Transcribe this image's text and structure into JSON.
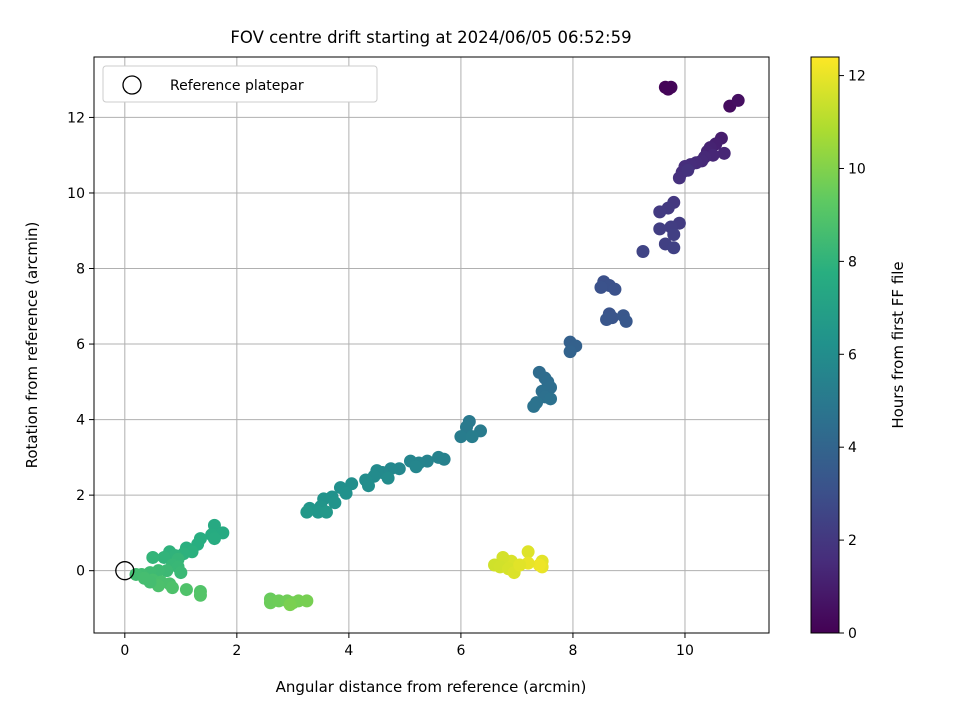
{
  "chart_data": {
    "type": "scatter",
    "title": "FOV centre drift starting at 2024/06/05 06:52:59",
    "xlabel": "Angular distance from reference (arcmin)",
    "ylabel": "Rotation from reference (arcmin)",
    "xlim": [
      -0.55,
      11.5
    ],
    "ylim": [
      -1.65,
      13.6
    ],
    "xticks": [
      "0",
      "2",
      "4",
      "6",
      "8",
      "10"
    ],
    "yticks": [
      "0",
      "2",
      "4",
      "6",
      "8",
      "10",
      "12"
    ],
    "grid": true,
    "legend": {
      "placement": "top-left",
      "entries": [
        "Reference platepar"
      ]
    },
    "reference_point": {
      "x": 0,
      "y": 0,
      "marker": "open-circle"
    },
    "colorbar": {
      "label": "Hours from first FF file",
      "colormap": "viridis",
      "range": [
        0,
        12.4
      ],
      "ticks": [
        "0",
        "2",
        "4",
        "6",
        "8",
        "10",
        "12"
      ]
    },
    "points": [
      {
        "x": 9.65,
        "y": 12.8,
        "c": 0.1
      },
      {
        "x": 9.75,
        "y": 12.8,
        "c": 0.2
      },
      {
        "x": 9.7,
        "y": 12.75,
        "c": 0.15
      },
      {
        "x": 10.8,
        "y": 12.3,
        "c": 0.4
      },
      {
        "x": 10.95,
        "y": 12.45,
        "c": 0.5
      },
      {
        "x": 10.65,
        "y": 11.45,
        "c": 1.0
      },
      {
        "x": 10.55,
        "y": 11.3,
        "c": 1.1
      },
      {
        "x": 10.45,
        "y": 11.2,
        "c": 1.2
      },
      {
        "x": 10.4,
        "y": 11.1,
        "c": 1.25
      },
      {
        "x": 10.7,
        "y": 11.05,
        "c": 1.3
      },
      {
        "x": 10.5,
        "y": 11.0,
        "c": 1.35
      },
      {
        "x": 10.35,
        "y": 10.95,
        "c": 1.4
      },
      {
        "x": 10.3,
        "y": 10.85,
        "c": 1.45
      },
      {
        "x": 10.2,
        "y": 10.8,
        "c": 1.5
      },
      {
        "x": 10.1,
        "y": 10.75,
        "c": 1.55
      },
      {
        "x": 10.0,
        "y": 10.7,
        "c": 1.6
      },
      {
        "x": 9.95,
        "y": 10.55,
        "c": 1.65
      },
      {
        "x": 9.9,
        "y": 10.4,
        "c": 1.7
      },
      {
        "x": 10.05,
        "y": 10.6,
        "c": 1.75
      },
      {
        "x": 9.8,
        "y": 9.75,
        "c": 2.0
      },
      {
        "x": 9.7,
        "y": 9.6,
        "c": 2.05
      },
      {
        "x": 9.55,
        "y": 9.5,
        "c": 2.1
      },
      {
        "x": 9.9,
        "y": 9.2,
        "c": 2.15
      },
      {
        "x": 9.75,
        "y": 9.1,
        "c": 2.2
      },
      {
        "x": 9.55,
        "y": 9.05,
        "c": 2.25
      },
      {
        "x": 9.8,
        "y": 8.9,
        "c": 2.3
      },
      {
        "x": 9.65,
        "y": 8.65,
        "c": 2.35
      },
      {
        "x": 9.8,
        "y": 8.55,
        "c": 2.4
      },
      {
        "x": 9.25,
        "y": 8.45,
        "c": 2.5
      },
      {
        "x": 8.55,
        "y": 7.65,
        "c": 3.0
      },
      {
        "x": 8.65,
        "y": 7.55,
        "c": 3.05
      },
      {
        "x": 8.75,
        "y": 7.45,
        "c": 3.1
      },
      {
        "x": 8.5,
        "y": 7.5,
        "c": 3.1
      },
      {
        "x": 8.65,
        "y": 6.8,
        "c": 3.2
      },
      {
        "x": 8.7,
        "y": 6.7,
        "c": 3.25
      },
      {
        "x": 8.6,
        "y": 6.65,
        "c": 3.3
      },
      {
        "x": 8.9,
        "y": 6.75,
        "c": 3.35
      },
      {
        "x": 8.95,
        "y": 6.6,
        "c": 3.4
      },
      {
        "x": 7.95,
        "y": 6.05,
        "c": 3.8
      },
      {
        "x": 8.05,
        "y": 5.95,
        "c": 3.85
      },
      {
        "x": 7.95,
        "y": 5.8,
        "c": 3.9
      },
      {
        "x": 7.4,
        "y": 5.25,
        "c": 4.3
      },
      {
        "x": 7.5,
        "y": 5.1,
        "c": 4.35
      },
      {
        "x": 7.55,
        "y": 5.0,
        "c": 4.4
      },
      {
        "x": 7.6,
        "y": 4.85,
        "c": 4.45
      },
      {
        "x": 7.45,
        "y": 4.75,
        "c": 4.5
      },
      {
        "x": 7.5,
        "y": 4.6,
        "c": 4.55
      },
      {
        "x": 7.6,
        "y": 4.55,
        "c": 4.6
      },
      {
        "x": 7.35,
        "y": 4.45,
        "c": 4.65
      },
      {
        "x": 7.3,
        "y": 4.35,
        "c": 4.7
      },
      {
        "x": 6.15,
        "y": 3.95,
        "c": 5.0
      },
      {
        "x": 6.1,
        "y": 3.8,
        "c": 5.05
      },
      {
        "x": 6.35,
        "y": 3.7,
        "c": 5.1
      },
      {
        "x": 6.0,
        "y": 3.55,
        "c": 5.15
      },
      {
        "x": 6.2,
        "y": 3.55,
        "c": 5.2
      },
      {
        "x": 5.7,
        "y": 2.95,
        "c": 5.4
      },
      {
        "x": 5.6,
        "y": 3.0,
        "c": 5.45
      },
      {
        "x": 5.4,
        "y": 2.9,
        "c": 5.5
      },
      {
        "x": 5.25,
        "y": 2.85,
        "c": 5.55
      },
      {
        "x": 5.1,
        "y": 2.9,
        "c": 5.6
      },
      {
        "x": 5.2,
        "y": 2.75,
        "c": 5.65
      },
      {
        "x": 4.9,
        "y": 2.7,
        "c": 5.7
      },
      {
        "x": 4.75,
        "y": 2.7,
        "c": 5.75
      },
      {
        "x": 4.6,
        "y": 2.6,
        "c": 5.8
      },
      {
        "x": 4.5,
        "y": 2.65,
        "c": 5.85
      },
      {
        "x": 4.45,
        "y": 2.5,
        "c": 5.9
      },
      {
        "x": 4.7,
        "y": 2.45,
        "c": 5.95
      },
      {
        "x": 4.3,
        "y": 2.4,
        "c": 6.0
      },
      {
        "x": 4.35,
        "y": 2.25,
        "c": 6.05
      },
      {
        "x": 4.05,
        "y": 2.3,
        "c": 6.1
      },
      {
        "x": 3.85,
        "y": 2.2,
        "c": 6.15
      },
      {
        "x": 3.95,
        "y": 2.05,
        "c": 6.2
      },
      {
        "x": 3.7,
        "y": 1.95,
        "c": 6.25
      },
      {
        "x": 3.55,
        "y": 1.9,
        "c": 6.3
      },
      {
        "x": 3.75,
        "y": 1.8,
        "c": 6.35
      },
      {
        "x": 3.5,
        "y": 1.7,
        "c": 6.4
      },
      {
        "x": 3.3,
        "y": 1.65,
        "c": 6.45
      },
      {
        "x": 3.45,
        "y": 1.55,
        "c": 6.5
      },
      {
        "x": 3.25,
        "y": 1.55,
        "c": 6.55
      },
      {
        "x": 3.6,
        "y": 1.55,
        "c": 6.6
      },
      {
        "x": 1.6,
        "y": 1.2,
        "c": 7.5
      },
      {
        "x": 1.75,
        "y": 1.0,
        "c": 7.55
      },
      {
        "x": 1.55,
        "y": 0.95,
        "c": 7.6
      },
      {
        "x": 1.6,
        "y": 0.85,
        "c": 7.65
      },
      {
        "x": 1.35,
        "y": 0.85,
        "c": 7.7
      },
      {
        "x": 1.3,
        "y": 0.7,
        "c": 7.75
      },
      {
        "x": 1.1,
        "y": 0.6,
        "c": 7.8
      },
      {
        "x": 1.2,
        "y": 0.5,
        "c": 7.85
      },
      {
        "x": 1.05,
        "y": 0.45,
        "c": 7.9
      },
      {
        "x": 0.8,
        "y": 0.5,
        "c": 7.95
      },
      {
        "x": 0.9,
        "y": 0.4,
        "c": 8.0
      },
      {
        "x": 0.7,
        "y": 0.35,
        "c": 8.05
      },
      {
        "x": 0.5,
        "y": 0.35,
        "c": 8.1
      },
      {
        "x": 0.95,
        "y": 0.3,
        "c": 8.15
      },
      {
        "x": 0.85,
        "y": 0.15,
        "c": 8.2
      },
      {
        "x": 0.95,
        "y": 0.1,
        "c": 8.25
      },
      {
        "x": 1.0,
        "y": -0.05,
        "c": 8.3
      },
      {
        "x": 0.75,
        "y": 0.0,
        "c": 8.35
      },
      {
        "x": 0.6,
        "y": 0.0,
        "c": 8.4
      },
      {
        "x": 0.45,
        "y": -0.05,
        "c": 8.45
      },
      {
        "x": 0.3,
        "y": -0.1,
        "c": 8.5
      },
      {
        "x": 0.2,
        "y": -0.1,
        "c": 8.55
      },
      {
        "x": 0.35,
        "y": -0.2,
        "c": 8.6
      },
      {
        "x": 0.5,
        "y": -0.25,
        "c": 8.65
      },
      {
        "x": 0.65,
        "y": -0.3,
        "c": 8.7
      },
      {
        "x": 0.8,
        "y": -0.35,
        "c": 8.75
      },
      {
        "x": 0.6,
        "y": -0.4,
        "c": 8.8
      },
      {
        "x": 0.85,
        "y": -0.45,
        "c": 8.85
      },
      {
        "x": 1.1,
        "y": -0.5,
        "c": 8.9
      },
      {
        "x": 1.35,
        "y": -0.55,
        "c": 8.95
      },
      {
        "x": 1.35,
        "y": -0.65,
        "c": 9.0
      },
      {
        "x": 0.45,
        "y": -0.3,
        "c": 8.6
      },
      {
        "x": 2.6,
        "y": -0.75,
        "c": 9.5
      },
      {
        "x": 2.6,
        "y": -0.85,
        "c": 9.55
      },
      {
        "x": 2.75,
        "y": -0.8,
        "c": 9.6
      },
      {
        "x": 2.9,
        "y": -0.8,
        "c": 9.65
      },
      {
        "x": 3.0,
        "y": -0.85,
        "c": 9.7
      },
      {
        "x": 3.1,
        "y": -0.8,
        "c": 9.75
      },
      {
        "x": 3.25,
        "y": -0.8,
        "c": 9.8
      },
      {
        "x": 2.95,
        "y": -0.9,
        "c": 9.85
      },
      {
        "x": 7.2,
        "y": 0.5,
        "c": 11.8
      },
      {
        "x": 7.45,
        "y": 0.25,
        "c": 11.9
      },
      {
        "x": 7.45,
        "y": 0.1,
        "c": 12.0
      },
      {
        "x": 7.4,
        "y": 0.15,
        "c": 12.1
      },
      {
        "x": 7.2,
        "y": 0.2,
        "c": 12.0
      },
      {
        "x": 6.9,
        "y": 0.25,
        "c": 11.7
      },
      {
        "x": 6.75,
        "y": 0.35,
        "c": 11.6
      },
      {
        "x": 6.6,
        "y": 0.15,
        "c": 11.5
      },
      {
        "x": 6.7,
        "y": 0.1,
        "c": 11.55
      },
      {
        "x": 6.85,
        "y": 0.05,
        "c": 11.65
      },
      {
        "x": 6.95,
        "y": -0.05,
        "c": 11.75
      },
      {
        "x": 7.05,
        "y": 0.15,
        "c": 11.85
      }
    ]
  }
}
